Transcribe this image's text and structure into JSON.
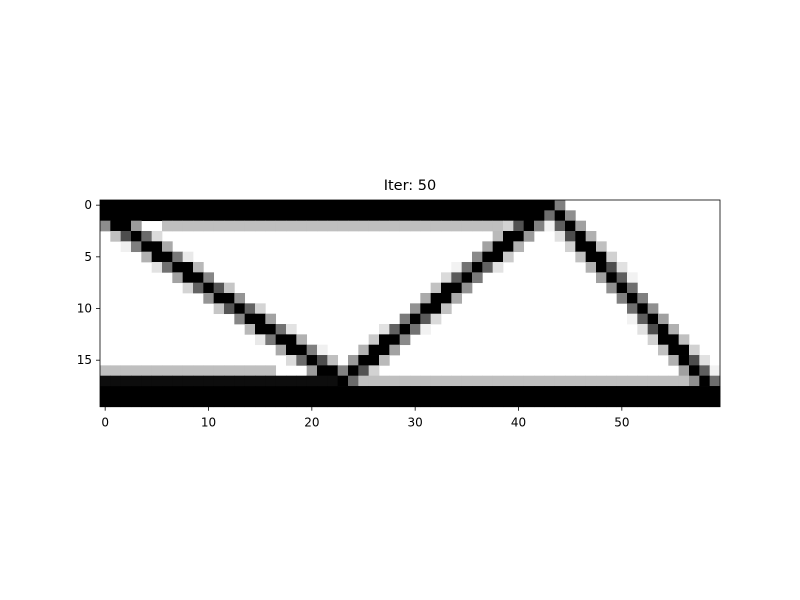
{
  "chart_data": {
    "type": "heatmap",
    "title": "Iter: 50",
    "xlabel": "",
    "ylabel": "",
    "xlim": [
      -0.5,
      59.5
    ],
    "ylim": [
      19.5,
      -0.5
    ],
    "x_ticks": [
      0,
      10,
      20,
      30,
      40,
      50
    ],
    "y_ticks": [
      0,
      5,
      10,
      15
    ],
    "grid": false,
    "colormap": "gray_r",
    "value_range": [
      0,
      1
    ],
    "grid_size": {
      "cols": 60,
      "rows": 20
    },
    "regions": [
      {
        "name": "top chord",
        "kind": "rect",
        "cols": [
          0,
          42
        ],
        "rows": [
          0,
          1
        ],
        "density": 1.0
      },
      {
        "name": "top chord thin",
        "kind": "rect",
        "cols": [
          6,
          38
        ],
        "rows": [
          2,
          2
        ],
        "density": 0.25
      },
      {
        "name": "bottom chord",
        "kind": "rect",
        "cols": [
          0,
          59
        ],
        "rows": [
          18,
          19
        ],
        "density": 1.0
      },
      {
        "name": "bottom chord upper band",
        "kind": "rect",
        "cols": [
          0,
          22
        ],
        "rows": [
          17,
          17
        ],
        "density": 0.95
      },
      {
        "name": "bottom left thin",
        "kind": "rect",
        "cols": [
          0,
          16
        ],
        "rows": [
          16,
          16
        ],
        "density": 0.25
      },
      {
        "name": "bottom right thin",
        "kind": "rect",
        "cols": [
          24,
          56
        ],
        "rows": [
          17,
          17
        ],
        "density": 0.25
      },
      {
        "name": "diagonal 1",
        "kind": "line",
        "from": [
          0,
          1
        ],
        "to": [
          23,
          17
        ],
        "width": 0.9,
        "density": 1.0
      },
      {
        "name": "diagonal 2",
        "kind": "line",
        "from": [
          23,
          17
        ],
        "to": [
          42,
          1
        ],
        "width": 0.9,
        "density": 1.0
      },
      {
        "name": "diagonal 3",
        "kind": "line",
        "from": [
          43,
          0
        ],
        "to": [
          59,
          18
        ],
        "width": 0.9,
        "density": 1.0
      }
    ]
  }
}
